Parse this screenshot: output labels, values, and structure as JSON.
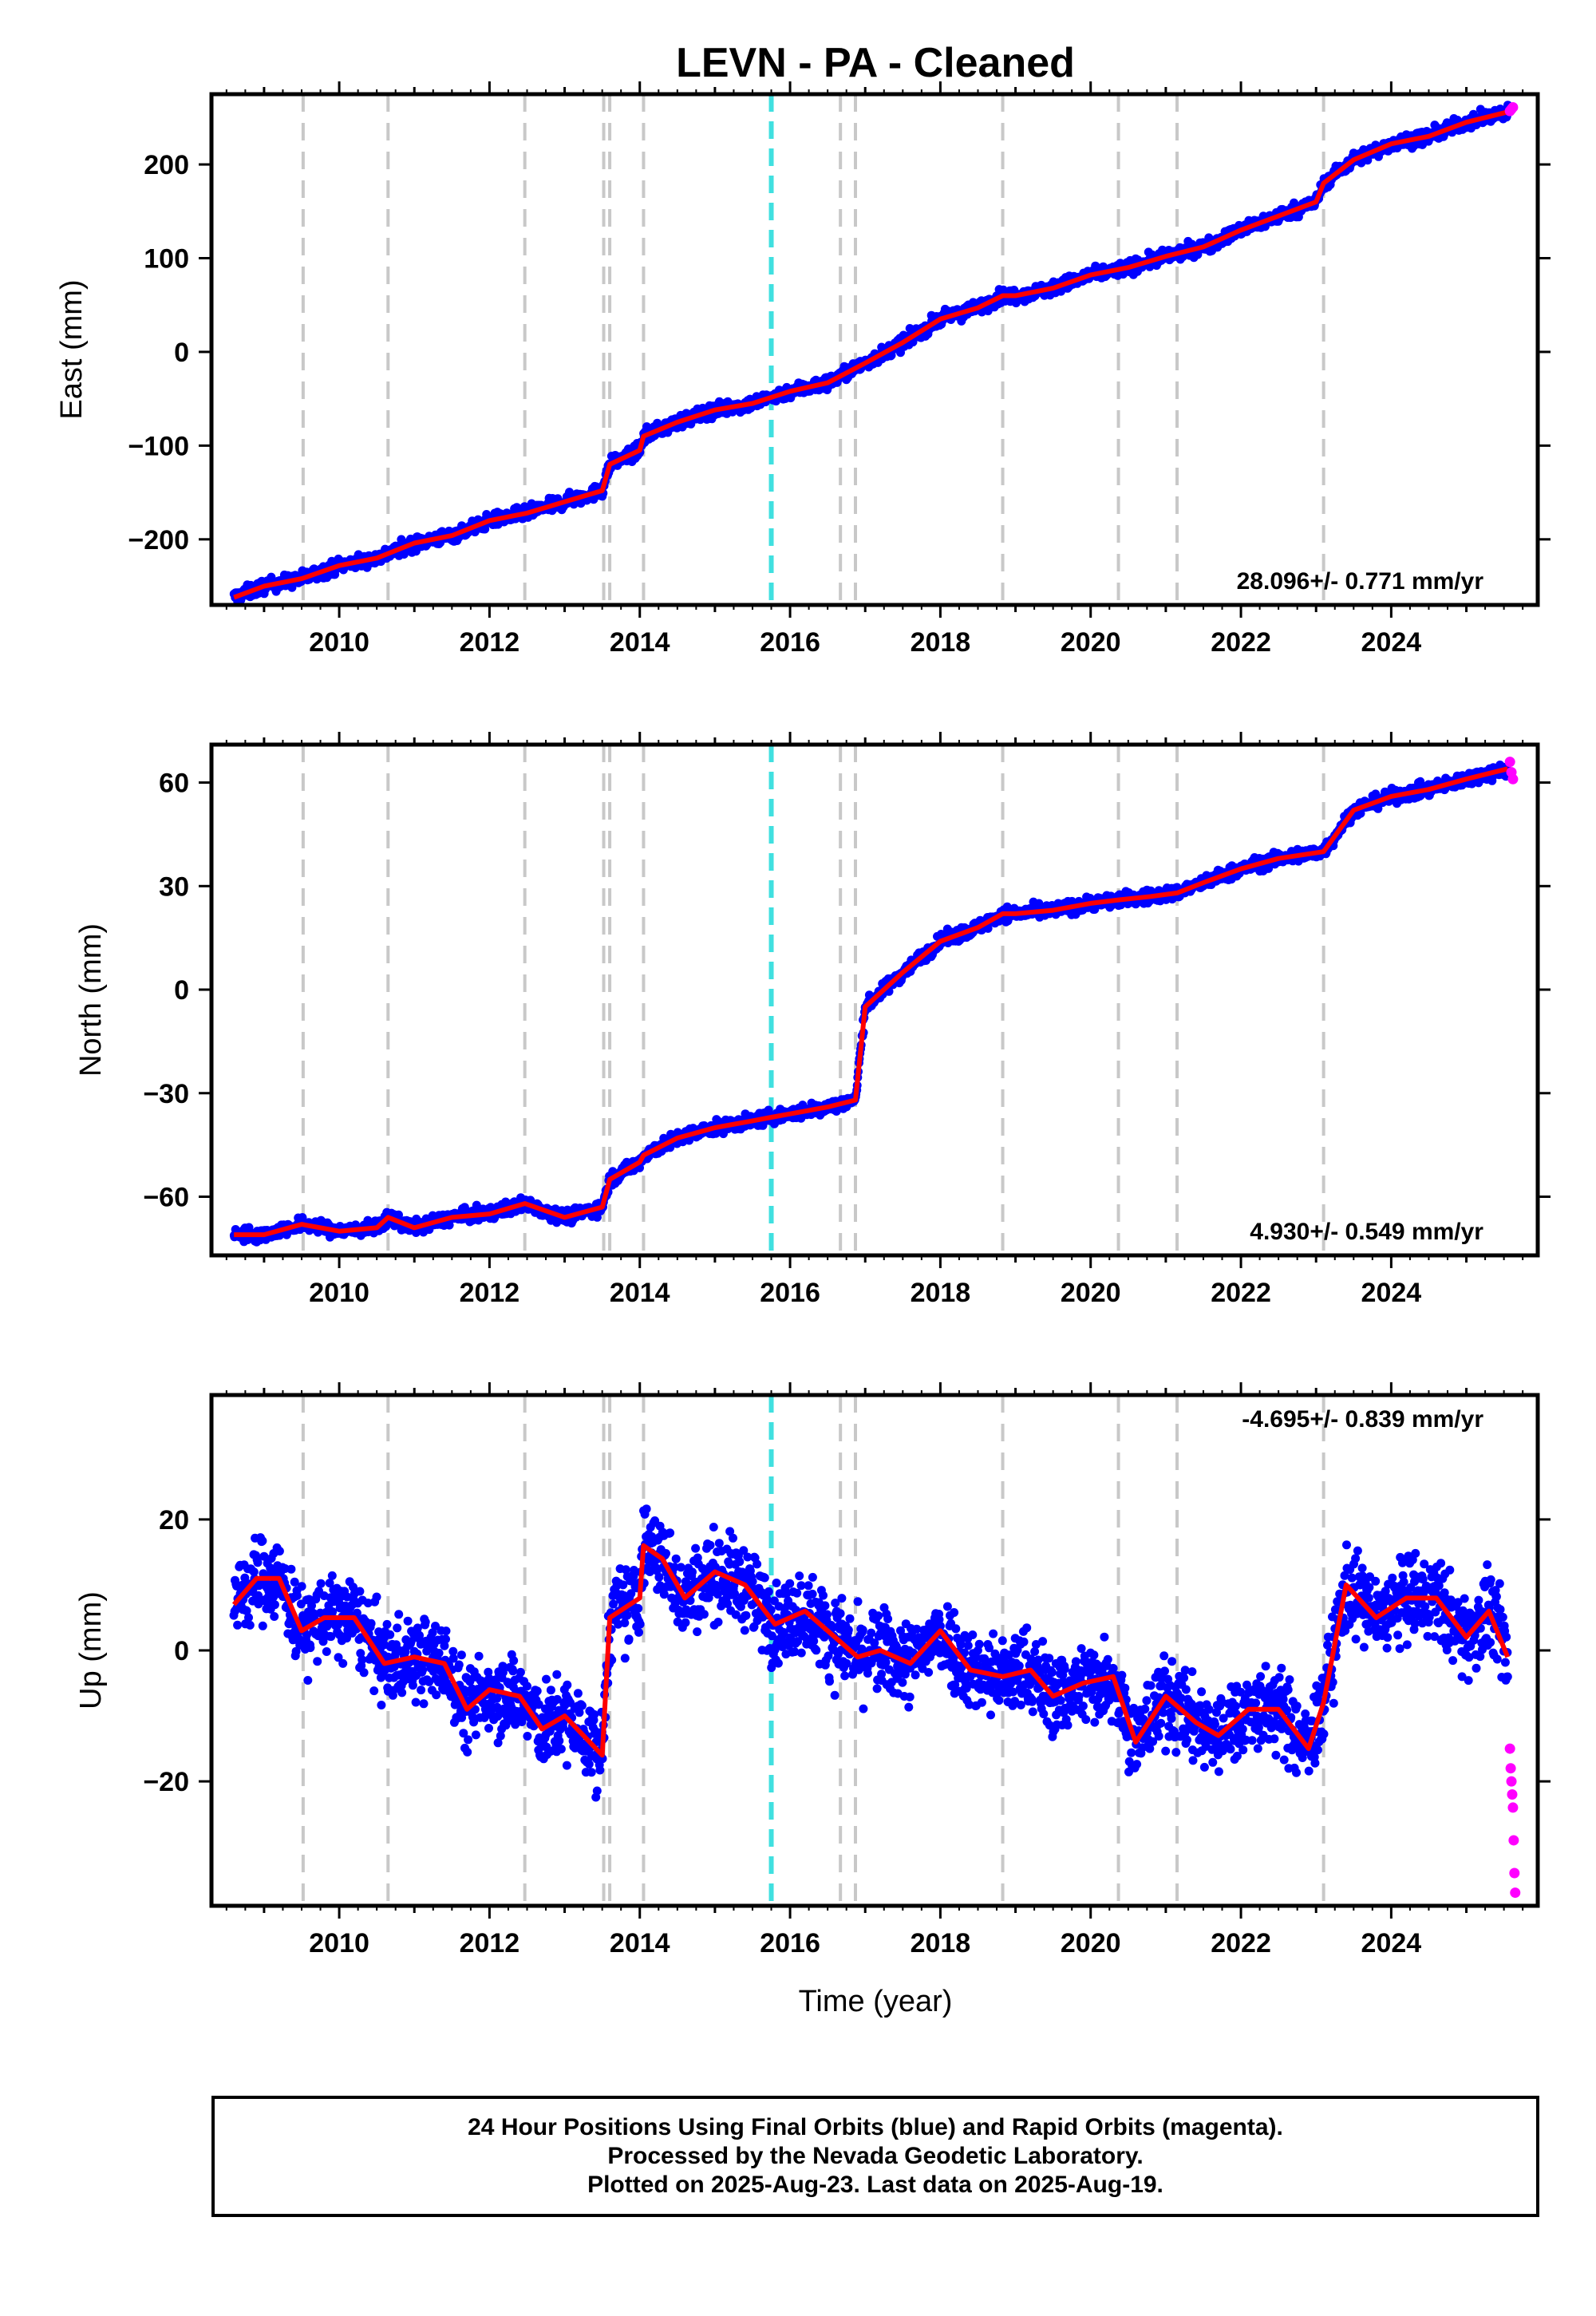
{
  "title": "LEVN  - PA - Cleaned",
  "x_axis_label": "Time (year)",
  "x_ticks": [
    "2010",
    "2012",
    "2014",
    "2016",
    "2018",
    "2020",
    "2022",
    "2024"
  ],
  "colors": {
    "final_orbits": "#0000ff",
    "rapid_orbits": "#ff00ff",
    "model": "#ff0000",
    "event_line": "#c8c8c8",
    "highlight_line": "#40e0e0"
  },
  "caption": [
    "24 Hour Positions Using Final Orbits (blue) and Rapid Orbits (magenta).",
    "Processed by the Nevada Geodetic Laboratory.",
    "Plotted on 2025-Aug-23. Last data on 2025-Aug-19."
  ],
  "chart_data": [
    {
      "type": "scatter",
      "panel": "east",
      "ylabel": "East (mm)",
      "xlim": [
        2008.3,
        2025.95
      ],
      "ylim": [
        -270,
        275
      ],
      "yticks": [
        -200,
        -100,
        0,
        100,
        200
      ],
      "ytick_labels": [
        "−200",
        "−100",
        "0",
        "100",
        "200"
      ],
      "rate_label": "28.096+/- 0.771 mm/yr",
      "rate_position": "bottom-right",
      "event_lines": [
        2009.52,
        2010.65,
        2012.47,
        2013.52,
        2013.6,
        2014.05,
        2016.67,
        2016.87,
        2018.83,
        2020.37,
        2021.15,
        2023.1
      ],
      "highlight_line": 2015.75,
      "series": [
        {
          "name": "Final Orbits",
          "x": [
            2008.6,
            2009.0,
            2009.5,
            2010.0,
            2010.5,
            2011.0,
            2011.5,
            2012.0,
            2012.5,
            2013.0,
            2013.5,
            2013.6,
            2014.0,
            2014.05,
            2014.5,
            2015.0,
            2015.5,
            2016.0,
            2016.5,
            2017.0,
            2017.5,
            2018.0,
            2018.5,
            2018.83,
            2019.0,
            2019.5,
            2020.0,
            2020.5,
            2021.0,
            2021.5,
            2022.0,
            2022.5,
            2023.0,
            2023.1,
            2023.5,
            2024.0,
            2024.5,
            2025.0,
            2025.55
          ],
          "y": [
            -262,
            -250,
            -242,
            -228,
            -220,
            -204,
            -196,
            -180,
            -172,
            -160,
            -148,
            -120,
            -105,
            -90,
            -75,
            -62,
            -55,
            -42,
            -33,
            -12,
            10,
            35,
            47,
            60,
            60,
            68,
            82,
            90,
            102,
            112,
            130,
            145,
            160,
            180,
            205,
            222,
            230,
            245,
            256
          ]
        },
        {
          "name": "Rapid Orbits",
          "x": [
            2025.58,
            2025.6,
            2025.62
          ],
          "y": [
            257,
            259,
            261
          ]
        }
      ]
    },
    {
      "type": "scatter",
      "panel": "north",
      "ylabel": "North (mm)",
      "xlim": [
        2008.3,
        2025.95
      ],
      "ylim": [
        -77,
        71
      ],
      "yticks": [
        -60,
        -30,
        0,
        30,
        60
      ],
      "ytick_labels": [
        "−60",
        "−30",
        "0",
        "30",
        "60"
      ],
      "rate_label": "4.930+/- 0.549 mm/yr",
      "rate_position": "bottom-right",
      "event_lines": [
        2009.52,
        2010.65,
        2012.47,
        2013.52,
        2013.6,
        2014.05,
        2016.67,
        2016.87,
        2018.83,
        2020.37,
        2021.15,
        2023.1
      ],
      "highlight_line": 2015.75,
      "series": [
        {
          "name": "Final Orbits",
          "x": [
            2008.6,
            2009.0,
            2009.5,
            2010.0,
            2010.5,
            2010.65,
            2011.0,
            2011.5,
            2012.0,
            2012.47,
            2013.0,
            2013.5,
            2013.6,
            2014.0,
            2014.05,
            2014.5,
            2015.0,
            2015.5,
            2015.75,
            2016.0,
            2016.5,
            2016.87,
            2017.0,
            2017.5,
            2018.0,
            2018.5,
            2018.83,
            2019.0,
            2019.5,
            2020.0,
            2020.37,
            2020.8,
            2021.15,
            2021.5,
            2022.0,
            2022.5,
            2023.1,
            2023.5,
            2024.0,
            2024.5,
            2025.0,
            2025.55
          ],
          "y": [
            -71,
            -71,
            -68,
            -70,
            -69,
            -66,
            -69,
            -66,
            -65,
            -62,
            -66,
            -63,
            -55,
            -50,
            -48,
            -43,
            -40,
            -38,
            -37,
            -36,
            -34,
            -32,
            -5,
            5,
            14,
            18,
            22,
            22,
            23,
            25,
            26,
            27,
            28,
            31,
            35,
            38,
            40,
            52,
            56,
            58,
            61,
            64
          ]
        },
        {
          "name": "Rapid Orbits",
          "x": [
            2025.58,
            2025.6,
            2025.62
          ],
          "y": [
            66,
            63,
            61
          ]
        }
      ]
    },
    {
      "type": "scatter",
      "panel": "up",
      "ylabel": "Up (mm)",
      "xlim": [
        2008.3,
        2025.95
      ],
      "ylim": [
        -39,
        39
      ],
      "yticks": [
        -20,
        0,
        20
      ],
      "ytick_labels": [
        "−20",
        "0",
        "20"
      ],
      "rate_label": "-4.695+/- 0.839 mm/yr",
      "rate_position": "top-right",
      "event_lines": [
        2009.52,
        2010.65,
        2012.47,
        2013.52,
        2013.6,
        2014.05,
        2016.67,
        2016.87,
        2018.83,
        2020.37,
        2021.15,
        2023.1
      ],
      "highlight_line": 2015.75,
      "series": [
        {
          "name": "Final Orbits",
          "x": [
            2008.6,
            2008.9,
            2009.2,
            2009.5,
            2009.8,
            2010.2,
            2010.6,
            2011.0,
            2011.4,
            2011.7,
            2012.0,
            2012.4,
            2012.7,
            2013.0,
            2013.5,
            2013.6,
            2014.0,
            2014.05,
            2014.3,
            2014.6,
            2015.0,
            2015.4,
            2015.8,
            2016.2,
            2016.6,
            2016.9,
            2017.2,
            2017.6,
            2018.0,
            2018.4,
            2018.83,
            2019.2,
            2019.5,
            2019.9,
            2020.3,
            2020.6,
            2021.0,
            2021.4,
            2021.7,
            2022.1,
            2022.5,
            2022.9,
            2023.1,
            2023.4,
            2023.8,
            2024.2,
            2024.6,
            2025.0,
            2025.3,
            2025.55
          ],
          "y": [
            7,
            11,
            11,
            3,
            5,
            5,
            -2,
            -1,
            -2,
            -9,
            -6,
            -7,
            -12,
            -10,
            -16,
            5,
            8,
            16,
            14,
            8,
            12,
            10,
            4,
            6,
            2,
            -1,
            0,
            -2,
            3,
            -3,
            -4,
            -3,
            -7,
            -5,
            -4,
            -14,
            -7,
            -11,
            -13,
            -9,
            -9,
            -15,
            -8,
            10,
            5,
            8,
            8,
            2,
            6,
            -1
          ]
        },
        {
          "name": "Rapid Orbits",
          "x": [
            2025.58,
            2025.59,
            2025.6,
            2025.61,
            2025.62,
            2025.63,
            2025.64,
            2025.65
          ],
          "y": [
            -15,
            -18,
            -20,
            -22,
            -24,
            -29,
            -34,
            -37
          ]
        }
      ]
    }
  ]
}
